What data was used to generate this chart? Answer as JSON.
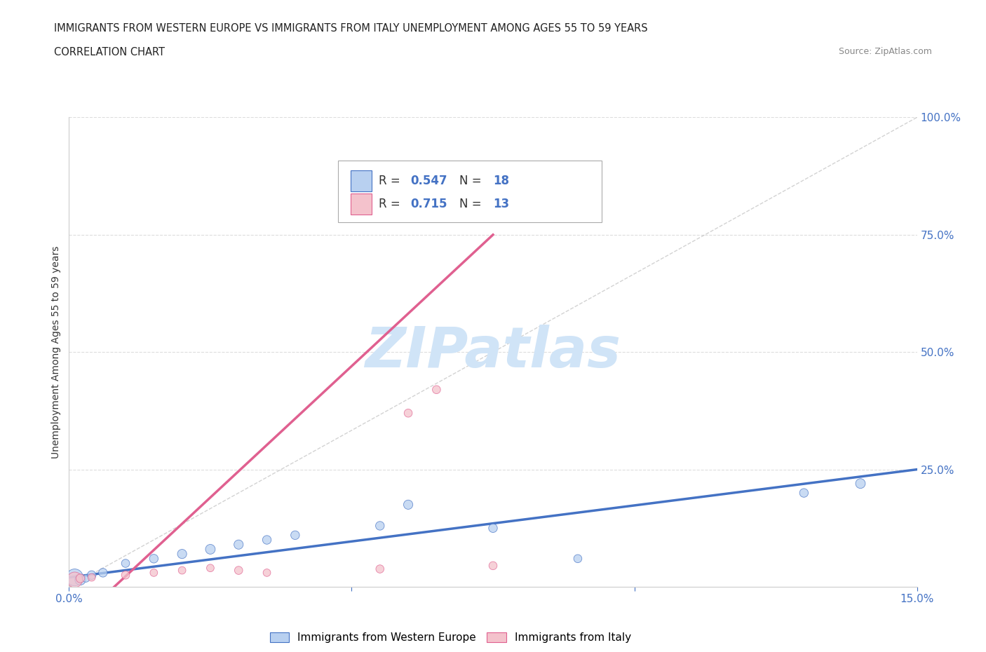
{
  "title": "IMMIGRANTS FROM WESTERN EUROPE VS IMMIGRANTS FROM ITALY UNEMPLOYMENT AMONG AGES 55 TO 59 YEARS",
  "subtitle": "CORRELATION CHART",
  "source": "Source: ZipAtlas.com",
  "ylabel": "Unemployment Among Ages 55 to 59 years",
  "x_min": 0.0,
  "x_max": 0.15,
  "y_min": 0.0,
  "y_max": 1.0,
  "blue_scatter_x": [
    0.001,
    0.002,
    0.003,
    0.004,
    0.006,
    0.01,
    0.015,
    0.02,
    0.025,
    0.03,
    0.035,
    0.04,
    0.055,
    0.06,
    0.075,
    0.09,
    0.13,
    0.14
  ],
  "blue_scatter_y": [
    0.02,
    0.015,
    0.018,
    0.025,
    0.03,
    0.05,
    0.06,
    0.07,
    0.08,
    0.09,
    0.1,
    0.11,
    0.13,
    0.175,
    0.125,
    0.06,
    0.2,
    0.22
  ],
  "blue_scatter_size": [
    300,
    120,
    60,
    80,
    80,
    70,
    80,
    90,
    100,
    90,
    80,
    80,
    80,
    90,
    80,
    70,
    80,
    100
  ],
  "pink_scatter_x": [
    0.001,
    0.002,
    0.004,
    0.01,
    0.015,
    0.02,
    0.025,
    0.03,
    0.035,
    0.055,
    0.06,
    0.065,
    0.075
  ],
  "pink_scatter_y": [
    0.015,
    0.018,
    0.02,
    0.025,
    0.03,
    0.035,
    0.04,
    0.035,
    0.03,
    0.038,
    0.37,
    0.42,
    0.045
  ],
  "pink_scatter_size": [
    250,
    80,
    60,
    70,
    60,
    60,
    60,
    70,
    60,
    70,
    70,
    70,
    70
  ],
  "blue_line_x0": 0.0,
  "blue_line_y0": 0.02,
  "blue_line_x1": 0.15,
  "blue_line_y1": 0.25,
  "pink_line_x0": 0.008,
  "pink_line_y0": 0.0,
  "pink_line_x1": 0.075,
  "pink_line_y1": 0.75,
  "diag_color": "#c0c0c0",
  "blue_line_color": "#4472c4",
  "pink_line_color": "#e06090",
  "blue_fill_color": "#b8d0f0",
  "pink_fill_color": "#f4c2cc",
  "watermark_text": "ZIPatlas",
  "watermark_color": "#d0e4f7",
  "legend_r_blue": "0.547",
  "legend_n_blue": "18",
  "legend_r_pink": "0.715",
  "legend_n_pink": "13",
  "accent_color": "#4472c4",
  "tick_color": "#4472c4",
  "bottom_legend_blue": "Immigrants from Western Europe",
  "bottom_legend_pink": "Immigrants from Italy"
}
